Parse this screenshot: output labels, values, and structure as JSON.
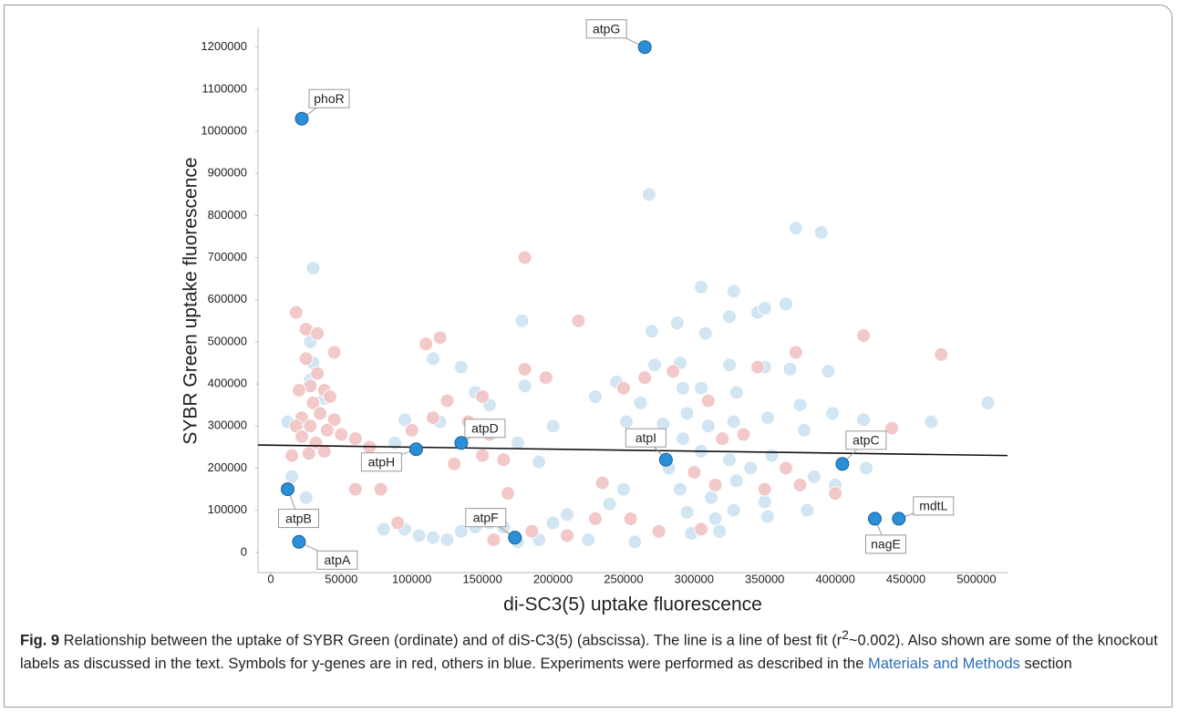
{
  "chart_data": {
    "type": "scatter",
    "ylabel": "SYBR Green uptake fluorescence",
    "xlabel": "di-SC3(5) uptake fluorescence",
    "xlim": [
      -9000,
      522000
    ],
    "ylim": [
      -48000,
      1247000
    ],
    "xticks": [
      0,
      50000,
      100000,
      150000,
      200000,
      250000,
      300000,
      350000,
      400000,
      450000,
      500000
    ],
    "yticks": [
      0,
      100000,
      200000,
      300000,
      400000,
      500000,
      600000,
      700000,
      800000,
      900000,
      1000000,
      1100000,
      1200000
    ],
    "series": [
      {
        "color": "#cfe4f2",
        "x": [
          12000,
          30000,
          28000,
          30000,
          28000,
          38000,
          25000,
          15000,
          80000,
          95000,
          105000,
          115000,
          125000,
          135000,
          145000,
          155000,
          165000,
          175000,
          190000,
          200000,
          210000,
          225000,
          240000,
          250000,
          258000,
          95000,
          88000,
          115000,
          120000,
          135000,
          145000,
          155000,
          175000,
          178000,
          180000,
          190000,
          200000,
          230000,
          245000,
          252000,
          262000,
          268000,
          270000,
          272000,
          278000,
          282000,
          288000,
          290000,
          292000,
          295000,
          292000,
          290000,
          295000,
          298000,
          305000,
          308000,
          305000,
          310000,
          305000,
          312000,
          315000,
          325000,
          328000,
          325000,
          330000,
          328000,
          325000,
          330000,
          328000,
          345000,
          350000,
          350000,
          352000,
          355000,
          350000,
          352000,
          365000,
          368000,
          372000,
          375000,
          378000,
          380000,
          390000,
          395000,
          398000,
          400000,
          420000,
          422000,
          468000,
          508000,
          385000,
          340000,
          318000
        ],
        "y": [
          310000,
          675000,
          500000,
          450000,
          410000,
          365000,
          130000,
          180000,
          55000,
          55000,
          40000,
          35000,
          30000,
          50000,
          60000,
          70000,
          60000,
          25000,
          30000,
          70000,
          90000,
          30000,
          115000,
          150000,
          25000,
          315000,
          260000,
          460000,
          310000,
          440000,
          380000,
          350000,
          260000,
          550000,
          395000,
          215000,
          300000,
          370000,
          405000,
          310000,
          355000,
          850000,
          525000,
          445000,
          305000,
          200000,
          545000,
          450000,
          390000,
          330000,
          270000,
          150000,
          95000,
          45000,
          630000,
          520000,
          390000,
          300000,
          240000,
          130000,
          80000,
          445000,
          620000,
          560000,
          380000,
          310000,
          220000,
          170000,
          100000,
          570000,
          580000,
          440000,
          320000,
          230000,
          120000,
          85000,
          590000,
          435000,
          770000,
          350000,
          290000,
          100000,
          760000,
          430000,
          330000,
          160000,
          315000,
          200000,
          310000,
          355000,
          180000,
          200000,
          50000
        ]
      },
      {
        "color": "#f2c6c6",
        "x": [
          18000,
          25000,
          33000,
          45000,
          25000,
          33000,
          28000,
          38000,
          20000,
          42000,
          30000,
          22000,
          35000,
          45000,
          18000,
          28000,
          40000,
          50000,
          22000,
          32000,
          15000,
          38000,
          27000,
          60000,
          70000,
          78000,
          60000,
          90000,
          100000,
          110000,
          120000,
          115000,
          125000,
          140000,
          150000,
          155000,
          130000,
          150000,
          165000,
          168000,
          180000,
          180000,
          195000,
          218000,
          158000,
          185000,
          210000,
          235000,
          250000,
          255000,
          265000,
          275000,
          285000,
          300000,
          310000,
          315000,
          320000,
          335000,
          345000,
          350000,
          365000,
          372000,
          375000,
          400000,
          420000,
          440000,
          475000,
          230000,
          260000,
          305000
        ],
        "y": [
          570000,
          530000,
          520000,
          475000,
          460000,
          425000,
          395000,
          385000,
          385000,
          370000,
          355000,
          320000,
          330000,
          315000,
          300000,
          300000,
          290000,
          280000,
          275000,
          260000,
          230000,
          240000,
          235000,
          270000,
          250000,
          150000,
          150000,
          70000,
          290000,
          495000,
          510000,
          320000,
          360000,
          310000,
          370000,
          280000,
          210000,
          230000,
          220000,
          140000,
          700000,
          435000,
          415000,
          550000,
          30000,
          50000,
          40000,
          165000,
          390000,
          80000,
          415000,
          50000,
          430000,
          190000,
          360000,
          160000,
          270000,
          280000,
          440000,
          150000,
          200000,
          475000,
          160000,
          140000,
          515000,
          295000,
          470000,
          80000,
          270000,
          55000
        ]
      }
    ],
    "highlighted": {
      "color": "#2b8fd8",
      "labels": [
        "phoR",
        "atpG",
        "atpB",
        "atpA",
        "atpH",
        "atpD",
        "atpF",
        "atpI",
        "atpC",
        "nagE",
        "mdtL"
      ],
      "x": [
        22000,
        265000,
        12000,
        20000,
        103000,
        135000,
        173000,
        280000,
        405000,
        428000,
        445000
      ],
      "y": [
        1030000,
        1200000,
        150000,
        25000,
        245000,
        260000,
        35000,
        220000,
        210000,
        80000,
        80000
      ]
    },
    "fit_line": {
      "color": "#111111",
      "x": [
        -9000,
        522000
      ],
      "y": [
        255000,
        230000
      ]
    }
  },
  "caption": {
    "label": "Fig. 9",
    "text1": " Relationship between the uptake of SYBR Green (ordinate) and of diS-C3(5) (abscissa). The line is a line of best fit (r",
    "sup": "2",
    "text2": "~0.002). Also shown are some of the knockout labels as discussed in the text. Symbols for y-genes are in red, others in blue. Experiments were performed as described in the ",
    "link": "Materials and Methods",
    "text3": " section"
  }
}
